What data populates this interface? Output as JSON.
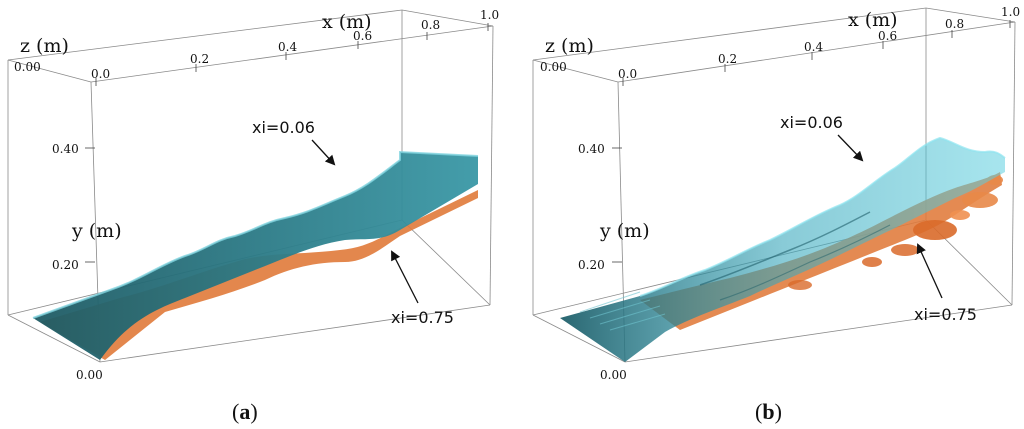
{
  "panels": [
    {
      "id": "a",
      "caption_open": "(",
      "caption_letter": "a",
      "caption_close": ")",
      "x_title": "x (m)",
      "y_title": "y (m)",
      "z_title": "z (m)",
      "x_ticks": [
        "0.0",
        "0.2",
        "0.4",
        "0.6",
        "0.8",
        "1.0"
      ],
      "y_ticks": [
        "0.00",
        "0.20",
        "0.40"
      ],
      "z_ticks": [
        "0.00"
      ],
      "annotation_upper": "xi=0.06",
      "annotation_lower": "xi=0.75"
    },
    {
      "id": "b",
      "caption_open": "(",
      "caption_letter": "b",
      "caption_close": ")",
      "x_title": "x (m)",
      "y_title": "y (m)",
      "z_title": "z (m)",
      "x_ticks": [
        "0.0",
        "0.2",
        "0.4",
        "0.6",
        "0.8",
        "1.0"
      ],
      "y_ticks": [
        "0.00",
        "0.20",
        "0.40"
      ],
      "z_ticks": [
        "0.00"
      ],
      "annotation_upper": "xi=0.06",
      "annotation_lower": "xi=0.75"
    }
  ],
  "colors": {
    "iso_low": "#3aa8bc",
    "iso_low_dark": "#1f5f6a",
    "iso_high": "#e07a3a",
    "box": "#8a8a8a"
  }
}
